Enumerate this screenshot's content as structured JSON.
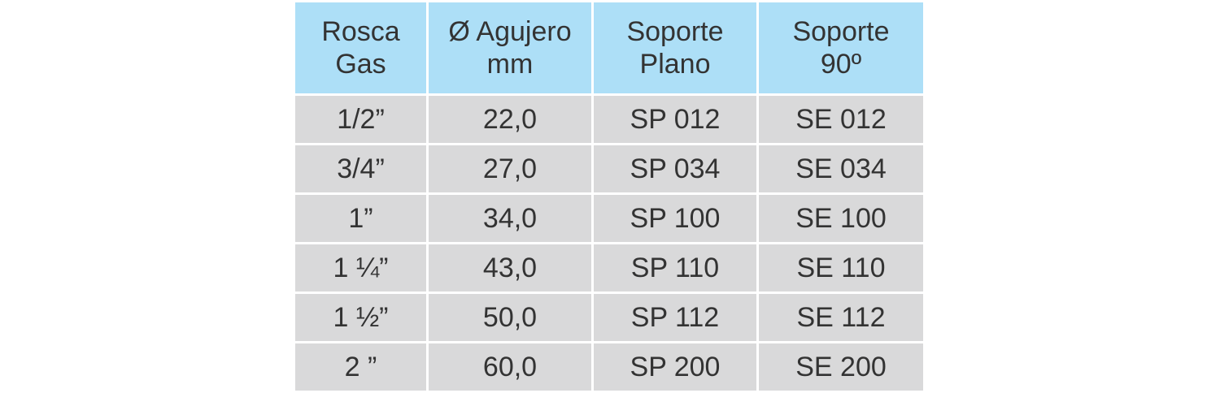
{
  "table": {
    "header": [
      [
        "Rosca",
        "Gas"
      ],
      [
        "Ø Agujero",
        "mm"
      ],
      [
        "Soporte",
        "Plano"
      ],
      [
        "Soporte",
        "90º"
      ]
    ],
    "rows": [
      [
        "1/2”",
        "22,0",
        "SP 012",
        "SE 012"
      ],
      [
        "3/4”",
        "27,0",
        "SP 034",
        "SE 034"
      ],
      [
        "1”",
        "34,0",
        "SP 100",
        "SE 100"
      ],
      [
        "1 ¼”",
        "43,0",
        "SP 110",
        "SE 110"
      ],
      [
        "1 ½”",
        "50,0",
        "SP 112",
        "SE 112"
      ],
      [
        "2 ”",
        "60,0",
        "SP 200",
        "SE 200"
      ]
    ]
  }
}
